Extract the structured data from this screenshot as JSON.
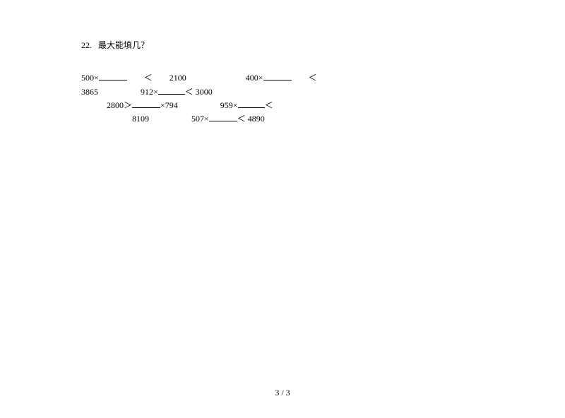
{
  "question": {
    "number": "22.",
    "title": "最大能填几？"
  },
  "lines": {
    "l1a": "500×",
    "l1b": "　　＜　　2100　　　　　　　400×",
    "l1c": "　　＜",
    "l2a": "3865　　　　　912×",
    "l2b": "＜ 3000",
    "l3a": "　　　2800＞",
    "l3b": "×794　　　　　959×",
    "l3c": "＜",
    "l4a": "　　　　　　8109　　　　　507×",
    "l4b": "＜ 4890"
  },
  "footer": "3 / 3",
  "style": {
    "background_color": "#ffffff",
    "text_color": "#000000",
    "font_size": 12,
    "blank_width": 40
  }
}
